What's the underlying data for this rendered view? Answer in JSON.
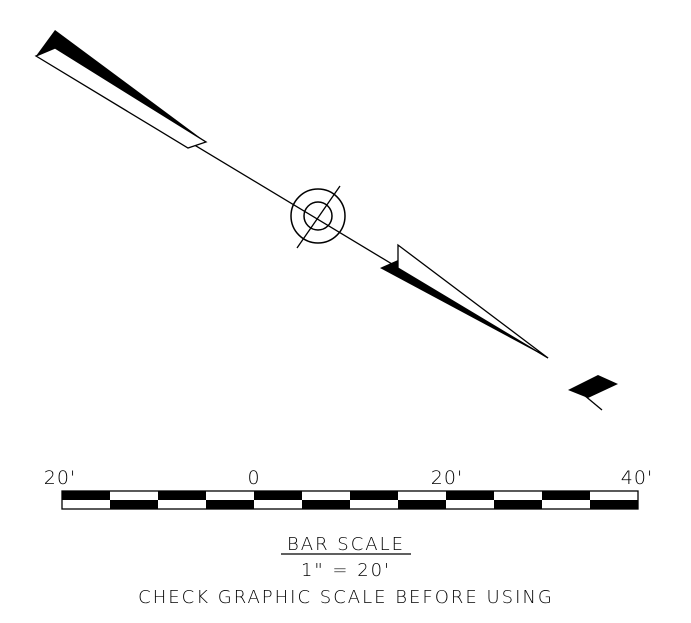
{
  "north_arrow": {
    "symbol": "north-arrow-icon"
  },
  "bar_scale": {
    "tick_labels": [
      "20'",
      "0",
      "20'",
      "40'"
    ],
    "segments": [
      "black",
      "white",
      "black",
      "white",
      "black",
      "white",
      "black",
      "white",
      "black",
      "white",
      "black",
      "white"
    ],
    "title": "BAR SCALE",
    "ratio": "1\" = 20'",
    "note": "CHECK GRAPHIC SCALE BEFORE USING"
  },
  "colors": {
    "ink": "#000000",
    "paper": "#ffffff"
  }
}
